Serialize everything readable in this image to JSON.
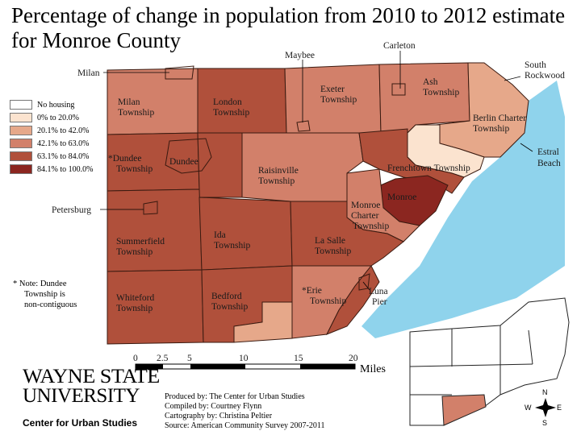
{
  "title": "Percentage of change in population from 2010 to 2012 estimate for Monroe County",
  "colors": {
    "no_housing": "#ffffff",
    "c0_20": "#fbe3cf",
    "c20_42": "#e6a88a",
    "c42_63": "#d2806a",
    "c63_84": "#b0503b",
    "c84_100": "#8b2620",
    "water": "#8fd3ec",
    "border": "#3a1a10"
  },
  "legend": [
    {
      "label": "No housing",
      "color": "#ffffff"
    },
    {
      "label": "0%  to  20.0%",
      "color": "#fbe3cf"
    },
    {
      "label": "20.1% to  42.0%",
      "color": "#e6a88a"
    },
    {
      "label": "42.1% to  63.0%",
      "color": "#d2806a"
    },
    {
      "label": "63.1% to  84.0%",
      "color": "#b0503b"
    },
    {
      "label": "84.1% to 100.0%",
      "color": "#8b2620"
    }
  ],
  "places": {
    "milan_twp": [
      "Milan",
      "Township"
    ],
    "london_twp": [
      "London",
      "Township"
    ],
    "exeter_twp": [
      "Exeter",
      "Township"
    ],
    "ash_twp": [
      "Ash",
      "Township"
    ],
    "berlin_twp": [
      "Berlin Charter",
      "Township"
    ],
    "dundee_twp": [
      "*Dundee",
      "Township"
    ],
    "dundee": "Dundee",
    "raisinville_twp": [
      "Raisinville",
      "Township"
    ],
    "frenchtown_twp": "Frenchtown Township",
    "monroe": "Monroe",
    "monroe_charter": [
      "Monroe",
      "Charter",
      "Township"
    ],
    "summerfield_twp": [
      "Summerfield",
      "Township"
    ],
    "ida_twp": [
      "Ida",
      "Township"
    ],
    "lasalle_twp": [
      "La Salle",
      "Township"
    ],
    "whiteford_twp": [
      "Whiteford",
      "Township"
    ],
    "bedford_twp": [
      "Bedford",
      "Township"
    ],
    "erie_twp": [
      "*Erie",
      "Township"
    ],
    "luna_pier": [
      "Luna",
      "Pier"
    ],
    "milan": "Milan",
    "maybee": "Maybee",
    "carleton": "Carleton",
    "south_rockwood": [
      "South",
      "Rockwood"
    ],
    "estral_beach": [
      "Estral",
      "Beach"
    ],
    "petersburg": "Petersburg"
  },
  "note": [
    "* Note: Dundee",
    "Township is",
    "non-contiguous"
  ],
  "scale": {
    "ticks": [
      "0",
      "2.5",
      "5",
      "10",
      "15",
      "20"
    ],
    "unit": "Miles"
  },
  "compass": {
    "n": "N",
    "s": "S",
    "e": "E",
    "w": "W"
  },
  "logo": {
    "line1": "WAYNE STATE",
    "line2": "UNIVERSITY",
    "line3": "Center for Urban Studies"
  },
  "credits": [
    "Produced by: The Center for Urban Studies",
    "Compiled by: Courtney Flynn",
    "Cartography by: Christina Peltier",
    "Source: American Community Survey 2007-2011"
  ]
}
